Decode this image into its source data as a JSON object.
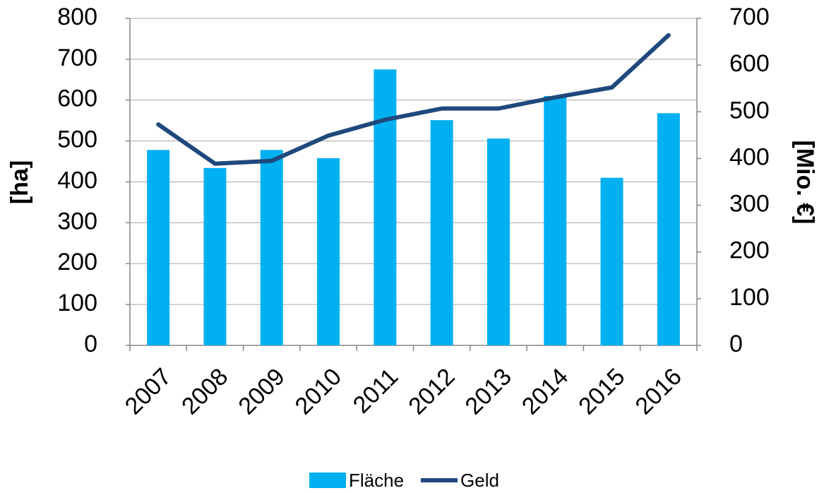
{
  "chart_data": {
    "type": "bar_line",
    "categories": [
      "2007",
      "2008",
      "2009",
      "2010",
      "2011",
      "2012",
      "2013",
      "2014",
      "2015",
      "2016"
    ],
    "series": [
      {
        "name": "Fläche",
        "type": "bar",
        "color": "#00b0f0",
        "values": [
          478,
          434,
          478,
          458,
          675,
          551,
          506,
          610,
          410,
          568
        ]
      },
      {
        "name": "Geld",
        "type": "line",
        "axis": "y2",
        "color": "#1f497d",
        "values": [
          473,
          389,
          395,
          449,
          483,
          507,
          507,
          531,
          552,
          664
        ]
      }
    ],
    "ylabel": "[ha]",
    "y2label": "[Mio. €]",
    "ylim": [
      0,
      800
    ],
    "yticks": [
      0,
      100,
      200,
      300,
      400,
      500,
      600,
      700,
      800
    ],
    "y2lim": [
      0,
      700
    ],
    "y2ticks": [
      0,
      100,
      200,
      300,
      400,
      500,
      600,
      700
    ],
    "grid": true,
    "legend": "bottom"
  }
}
